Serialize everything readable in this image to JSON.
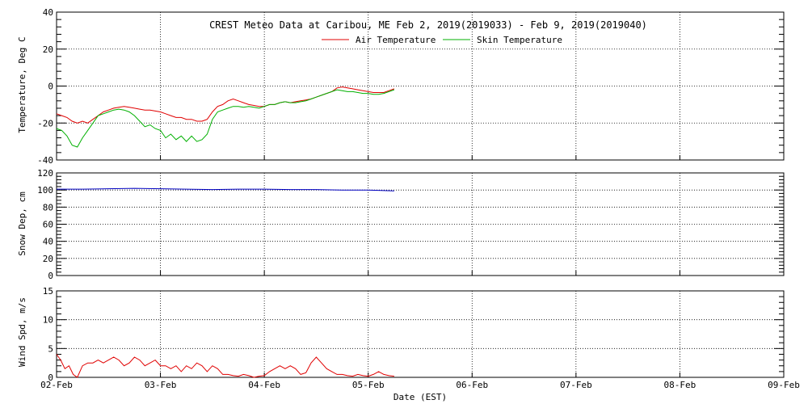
{
  "chart_data": [
    {
      "type": "line",
      "panel": "temperature",
      "title": "CREST Meteo Data at Caribou, ME   Feb  2, 2019(2019033) - Feb  9, 2019(2019040)",
      "ylabel": "Temperature, Deg C",
      "ylim": [
        -40,
        40
      ],
      "y_ticks": [
        -40,
        -20,
        0,
        20,
        40
      ],
      "y_tick_labels": [
        "-40",
        "-20",
        "0",
        "20",
        "40"
      ],
      "xlim": [
        0,
        7
      ],
      "x_unit": "days since 02-Feb",
      "grid": true,
      "legend_position": "top-center",
      "series": [
        {
          "name": "Air Temperature",
          "color": "#e00000",
          "x": [
            0.0,
            0.05,
            0.1,
            0.15,
            0.2,
            0.25,
            0.3,
            0.35,
            0.4,
            0.45,
            0.5,
            0.55,
            0.6,
            0.65,
            0.7,
            0.75,
            0.8,
            0.85,
            0.9,
            0.95,
            1.0,
            1.05,
            1.1,
            1.15,
            1.2,
            1.25,
            1.3,
            1.35,
            1.4,
            1.45,
            1.5,
            1.55,
            1.6,
            1.65,
            1.7,
            1.75,
            1.8,
            1.85,
            1.9,
            1.95,
            2.0,
            2.05,
            2.1,
            2.15,
            2.2,
            2.25,
            2.3,
            2.35,
            2.4,
            2.45,
            2.5,
            2.55,
            2.6,
            2.65,
            2.7,
            2.75,
            2.8,
            2.85,
            2.9,
            2.95,
            3.0,
            3.05,
            3.1,
            3.15,
            3.2,
            3.25
          ],
          "values": [
            -15,
            -16,
            -17,
            -19,
            -20,
            -19,
            -20,
            -18,
            -16,
            -14,
            -13,
            -12,
            -11.5,
            -11,
            -11.5,
            -12,
            -12.5,
            -13,
            -13,
            -13.5,
            -14,
            -15,
            -16,
            -17,
            -17,
            -18,
            -18,
            -19,
            -19,
            -18,
            -14,
            -11,
            -10,
            -8,
            -7,
            -8,
            -9,
            -10,
            -10.5,
            -11,
            -11,
            -10,
            -10,
            -9,
            -8.5,
            -9,
            -8.5,
            -8,
            -7.5,
            -7,
            -6,
            -5,
            -4,
            -3,
            -1,
            -0.5,
            -1,
            -1.5,
            -2,
            -2.5,
            -3,
            -3.5,
            -3.5,
            -3.5,
            -2.5,
            -1.5
          ]
        },
        {
          "name": "Skin Temperature",
          "color": "#00b000",
          "x": [
            0.0,
            0.05,
            0.1,
            0.15,
            0.2,
            0.25,
            0.3,
            0.35,
            0.4,
            0.45,
            0.5,
            0.55,
            0.6,
            0.65,
            0.7,
            0.75,
            0.8,
            0.85,
            0.9,
            0.95,
            1.0,
            1.05,
            1.1,
            1.15,
            1.2,
            1.25,
            1.3,
            1.35,
            1.4,
            1.45,
            1.5,
            1.55,
            1.6,
            1.65,
            1.7,
            1.75,
            1.8,
            1.85,
            1.9,
            1.95,
            2.0,
            2.05,
            2.1,
            2.15,
            2.2,
            2.25,
            2.3,
            2.35,
            2.4,
            2.45,
            2.5,
            2.55,
            2.6,
            2.65,
            2.7,
            2.75,
            2.8,
            2.85,
            2.9,
            2.95,
            3.0,
            3.05,
            3.1,
            3.15,
            3.2,
            3.25
          ],
          "values": [
            -23,
            -24,
            -27,
            -32,
            -33,
            -28,
            -24,
            -20,
            -16,
            -15,
            -14,
            -13,
            -12.5,
            -13,
            -14,
            -16,
            -19,
            -22,
            -21,
            -23,
            -24,
            -28,
            -26,
            -29,
            -27,
            -30,
            -27,
            -30,
            -29,
            -26,
            -18,
            -14,
            -13,
            -12,
            -11,
            -11,
            -11.5,
            -11,
            -11.5,
            -12,
            -11,
            -10,
            -10,
            -9,
            -8.5,
            -9,
            -9,
            -8.5,
            -8,
            -7,
            -6,
            -5,
            -4,
            -3,
            -2,
            -2.5,
            -3,
            -3,
            -3.5,
            -4,
            -4,
            -4.5,
            -4.5,
            -4,
            -3,
            -2
          ]
        }
      ]
    },
    {
      "type": "line",
      "panel": "snow",
      "ylabel": "Snow Dep, cm",
      "ylim": [
        0,
        120
      ],
      "y_ticks": [
        0,
        20,
        40,
        60,
        80,
        100,
        120
      ],
      "y_tick_labels": [
        "0",
        "20",
        "40",
        "60",
        "80",
        "100",
        "120"
      ],
      "xlim": [
        0,
        7
      ],
      "x_unit": "days since 02-Feb",
      "grid": true,
      "series": [
        {
          "color": "#0000c0",
          "x": [
            0.0,
            0.25,
            0.5,
            0.75,
            1.0,
            1.25,
            1.5,
            1.75,
            2.0,
            2.25,
            2.5,
            2.75,
            3.0,
            3.25
          ],
          "values": [
            101,
            101,
            101.5,
            102,
            101.5,
            101,
            100.5,
            101,
            101,
            100.5,
            100.5,
            100,
            100,
            99
          ]
        }
      ]
    },
    {
      "type": "line",
      "panel": "wind",
      "ylabel": "Wind Spd, m/s",
      "xlabel": "Date (EST)",
      "ylim": [
        0,
        15
      ],
      "y_ticks": [
        0,
        5,
        10,
        15
      ],
      "y_tick_labels": [
        "0",
        "5",
        "10",
        "15"
      ],
      "xlim": [
        0,
        7
      ],
      "x_unit": "days since 02-Feb",
      "x_ticks": [
        0,
        1,
        2,
        3,
        4,
        5,
        6,
        7
      ],
      "x_tick_labels": [
        "02-Feb",
        "03-Feb",
        "04-Feb",
        "05-Feb",
        "06-Feb",
        "07-Feb",
        "08-Feb",
        "09-Feb"
      ],
      "grid": true,
      "series": [
        {
          "color": "#e00000",
          "x": [
            0.0,
            0.04,
            0.08,
            0.12,
            0.16,
            0.2,
            0.25,
            0.3,
            0.35,
            0.4,
            0.45,
            0.5,
            0.55,
            0.6,
            0.65,
            0.7,
            0.75,
            0.8,
            0.85,
            0.9,
            0.95,
            1.0,
            1.05,
            1.1,
            1.15,
            1.2,
            1.25,
            1.3,
            1.35,
            1.4,
            1.45,
            1.5,
            1.55,
            1.6,
            1.65,
            1.7,
            1.75,
            1.8,
            1.85,
            1.9,
            1.95,
            2.0,
            2.05,
            2.1,
            2.15,
            2.2,
            2.25,
            2.3,
            2.35,
            2.4,
            2.45,
            2.5,
            2.55,
            2.6,
            2.65,
            2.7,
            2.75,
            2.8,
            2.85,
            2.9,
            2.95,
            3.0,
            3.05,
            3.1,
            3.15,
            3.2,
            3.25
          ],
          "values": [
            4,
            3,
            1.5,
            2,
            0.5,
            0,
            2,
            2.5,
            2.5,
            3,
            2.5,
            3,
            3.5,
            3,
            2,
            2.5,
            3.5,
            3,
            2,
            2.5,
            3,
            2,
            2,
            1.5,
            2,
            1,
            2,
            1.5,
            2.5,
            2,
            1,
            2,
            1.5,
            0.5,
            0.5,
            0.3,
            0.2,
            0.5,
            0.3,
            0,
            0.2,
            0.3,
            1,
            1.5,
            2,
            1.5,
            2,
            1.5,
            0.5,
            0.8,
            2.5,
            3.5,
            2.5,
            1.5,
            1,
            0.5,
            0.5,
            0.3,
            0.2,
            0.5,
            0.3,
            0.2,
            0.5,
            1,
            0.5,
            0.3,
            0.2
          ]
        }
      ]
    }
  ]
}
